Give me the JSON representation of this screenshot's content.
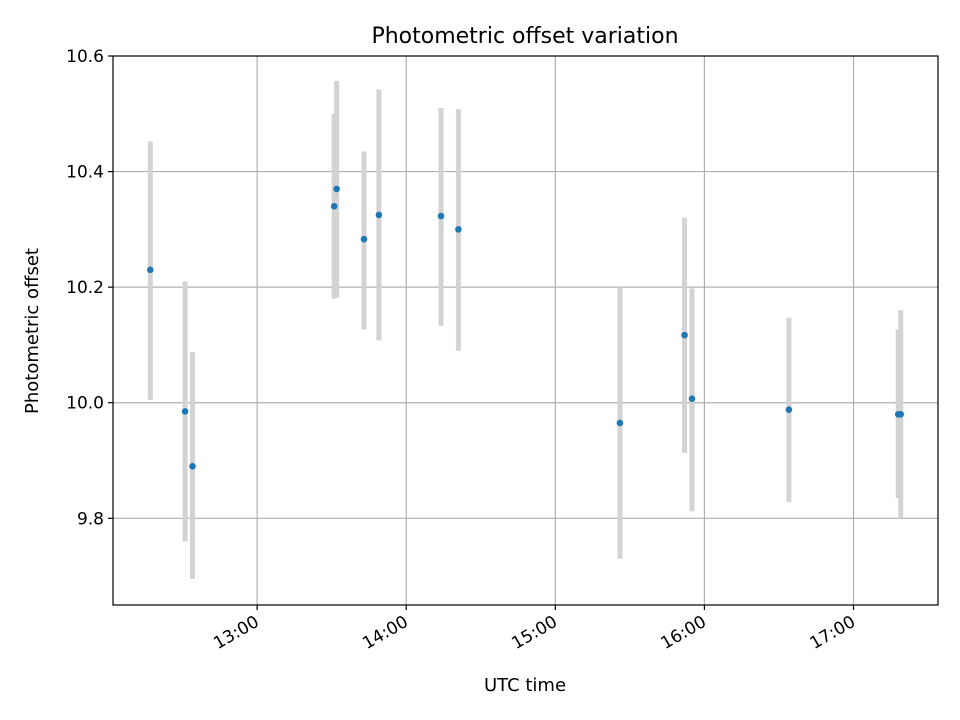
{
  "chart_data": {
    "type": "scatter",
    "title": "Photometric offset variation",
    "xlabel": "UTC time",
    "ylabel": "Photometric offset",
    "x_axis": "time (UTC)",
    "xlim": [
      "12:02",
      "17:34"
    ],
    "ylim": [
      9.65,
      10.6
    ],
    "x_ticks": [
      "13:00",
      "14:00",
      "15:00",
      "16:00",
      "17:00"
    ],
    "y_ticks": [
      9.8,
      10.0,
      10.2,
      10.4,
      10.6
    ],
    "y_tick_labels": [
      "9.8",
      "10.0",
      "10.2",
      "10.4",
      "10.6"
    ],
    "grid": true,
    "legend": "none",
    "point_color": "#1f77b4",
    "errorbar_color": "#d3d3d3",
    "series": [
      {
        "x": [
          "12:17",
          "12:31",
          "12:34",
          "13:31",
          "13:32",
          "13:43",
          "13:49",
          "14:14",
          "14:21",
          "15:26",
          "15:52",
          "15:55",
          "16:34",
          "17:18",
          "17:19"
        ],
        "y": [
          10.23,
          9.985,
          9.89,
          10.34,
          10.37,
          10.283,
          10.325,
          10.323,
          10.3,
          9.965,
          10.117,
          10.007,
          9.988,
          9.98,
          9.98
        ],
        "err_low": [
          10.005,
          9.76,
          9.695,
          10.18,
          10.182,
          10.127,
          10.108,
          10.133,
          10.09,
          9.73,
          9.913,
          9.812,
          9.828,
          9.835,
          9.8
        ],
        "err_high": [
          10.452,
          10.21,
          10.088,
          10.5,
          10.557,
          10.435,
          10.542,
          10.51,
          10.508,
          10.2,
          10.32,
          10.198,
          10.147,
          10.127,
          10.16
        ]
      }
    ]
  }
}
